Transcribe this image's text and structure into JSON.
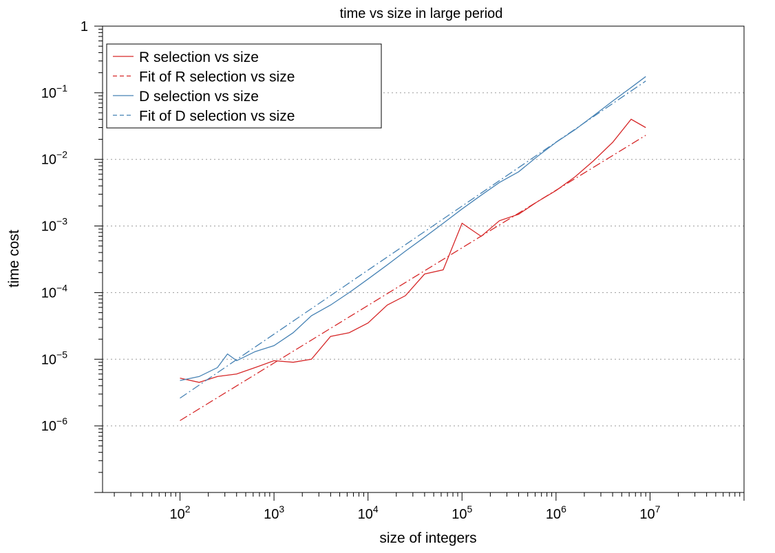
{
  "chart_data": {
    "type": "line",
    "title": "time vs size in large period",
    "xlabel": "size of integers",
    "ylabel": "time cost",
    "x_scale": "log",
    "y_scale": "log",
    "xlim": [
      15,
      100000000
    ],
    "ylim": [
      1e-07,
      1
    ],
    "grid": "horizontal dotted at major y ticks",
    "legend_position": "top-left",
    "x_ticks": [
      {
        "value": 100,
        "base": "10",
        "exp": "2"
      },
      {
        "value": 1000,
        "base": "10",
        "exp": "3"
      },
      {
        "value": 10000,
        "base": "10",
        "exp": "4"
      },
      {
        "value": 100000,
        "base": "10",
        "exp": "5"
      },
      {
        "value": 1000000,
        "base": "10",
        "exp": "6"
      },
      {
        "value": 10000000,
        "base": "10",
        "exp": "7"
      }
    ],
    "y_ticks": [
      {
        "value": 1,
        "base": "1",
        "exp": ""
      },
      {
        "value": 0.1,
        "base": "10",
        "exp": "−1"
      },
      {
        "value": 0.01,
        "base": "10",
        "exp": "−2"
      },
      {
        "value": 0.001,
        "base": "10",
        "exp": "−3"
      },
      {
        "value": 0.0001,
        "base": "10",
        "exp": "−4"
      },
      {
        "value": 1e-05,
        "base": "10",
        "exp": "−5"
      },
      {
        "value": 1e-06,
        "base": "10",
        "exp": "−6"
      }
    ],
    "series": [
      {
        "name": "R selection vs size",
        "color": "#d62728",
        "style": "solid",
        "x": [
          100,
          160,
          250,
          400,
          630,
          1000,
          1600,
          2500,
          4000,
          6300,
          10000,
          16000,
          25000,
          40000,
          63000,
          100000,
          160000,
          250000,
          400000,
          630000,
          1000000,
          1600000,
          2500000,
          4000000,
          6300000,
          9000000
        ],
        "y": [
          5.2e-06,
          4.5e-06,
          5.5e-06,
          6e-06,
          7.5e-06,
          9.5e-06,
          9e-06,
          1e-05,
          2.2e-05,
          2.5e-05,
          3.5e-05,
          6.5e-05,
          9e-05,
          0.00019,
          0.00022,
          0.0011,
          0.0007,
          0.0012,
          0.0015,
          0.0023,
          0.0034,
          0.0055,
          0.0095,
          0.018,
          0.04,
          0.03
        ]
      },
      {
        "name": "Fit of R selection vs size",
        "color": "#d62728",
        "style": "dashed",
        "x": [
          100,
          9000000
        ],
        "y": [
          1.2e-06,
          0.023
        ]
      },
      {
        "name": "D selection vs size",
        "color": "#4682b4",
        "style": "solid",
        "x": [
          100,
          160,
          250,
          320,
          400,
          630,
          1000,
          1600,
          2500,
          4000,
          6300,
          10000,
          16000,
          25000,
          40000,
          63000,
          100000,
          160000,
          250000,
          400000,
          630000,
          1000000,
          1600000,
          2500000,
          4000000,
          6300000,
          9000000
        ],
        "y": [
          4.8e-06,
          5.5e-06,
          7.5e-06,
          1.2e-05,
          9.5e-06,
          1.3e-05,
          1.6e-05,
          2.5e-05,
          4.5e-05,
          6.5e-05,
          0.0001,
          0.00016,
          0.00026,
          0.00042,
          0.00068,
          0.0011,
          0.0018,
          0.0029,
          0.0045,
          0.0065,
          0.011,
          0.018,
          0.028,
          0.045,
          0.075,
          0.12,
          0.175
        ]
      },
      {
        "name": "Fit of D selection vs size",
        "color": "#4682b4",
        "style": "dashed",
        "x": [
          100,
          9000000
        ],
        "y": [
          2.6e-06,
          0.15
        ]
      }
    ]
  }
}
